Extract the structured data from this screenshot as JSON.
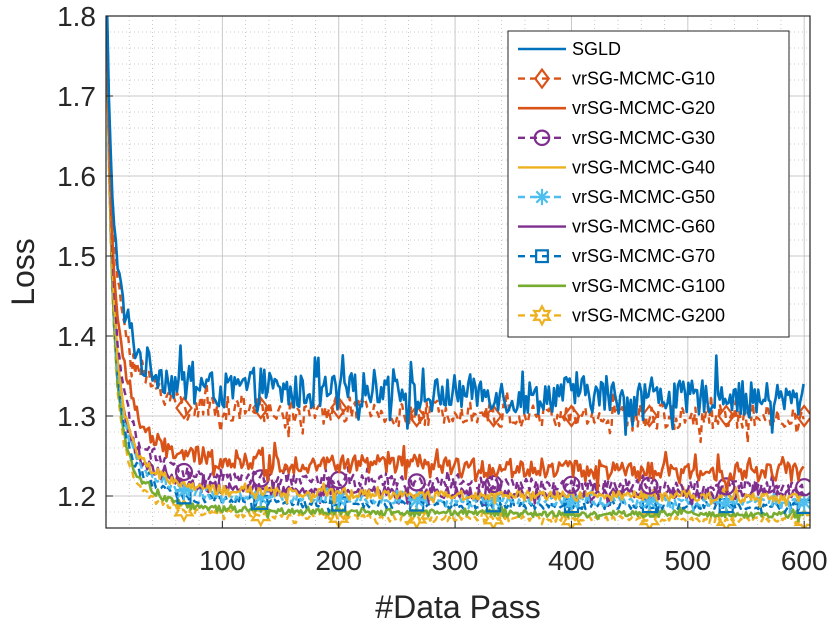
{
  "chart_data": {
    "type": "line",
    "title": "",
    "xlabel": "#Data Pass",
    "ylabel": "Loss",
    "xlim": [
      0,
      605
    ],
    "ylim": [
      1.16,
      1.8
    ],
    "xticks": [
      100,
      200,
      300,
      400,
      500,
      600
    ],
    "yticks": [
      1.2,
      1.3,
      1.4,
      1.5,
      1.6,
      1.7,
      1.8
    ],
    "xtick_labels": [
      "100",
      "200",
      "300",
      "400",
      "500",
      "600"
    ],
    "ytick_labels": [
      "1.2",
      "1.3",
      "1.4",
      "1.5",
      "1.6",
      "1.7",
      "1.8"
    ],
    "grid": true,
    "minor_grid": true,
    "legend_position": "top-right",
    "x": [
      1,
      3,
      6,
      10,
      15,
      20,
      25,
      30,
      40,
      50,
      60,
      67,
      80,
      100,
      133,
      150,
      200,
      250,
      267,
      300,
      333,
      350,
      400,
      450,
      467,
      500,
      533,
      550,
      600
    ],
    "series": [
      {
        "name": "SGLD",
        "color": "#0072BD",
        "dash": "",
        "marker": "none",
        "width": 2.6,
        "values": [
          1.8,
          1.66,
          1.56,
          1.49,
          1.44,
          1.41,
          1.39,
          1.37,
          1.36,
          1.35,
          1.34,
          1.34,
          1.34,
          1.33,
          1.34,
          1.33,
          1.33,
          1.34,
          1.32,
          1.33,
          1.33,
          1.32,
          1.33,
          1.32,
          1.33,
          1.32,
          1.33,
          1.32,
          1.32
        ],
        "noise": 0.022
      },
      {
        "name": "vrSG-MCMC-G10",
        "color": "#D95319",
        "dash": "7,5",
        "marker": "diamond",
        "width": 2.4,
        "values": [
          1.8,
          1.65,
          1.54,
          1.47,
          1.42,
          1.39,
          1.37,
          1.35,
          1.34,
          1.33,
          1.32,
          1.31,
          1.31,
          1.31,
          1.31,
          1.3,
          1.31,
          1.3,
          1.3,
          1.31,
          1.3,
          1.3,
          1.3,
          1.3,
          1.3,
          1.3,
          1.3,
          1.3,
          1.3
        ],
        "noise": 0.016
      },
      {
        "name": "vrSG-MCMC-G20",
        "color": "#D95319",
        "dash": "",
        "marker": "none",
        "width": 2.6,
        "values": [
          1.79,
          1.63,
          1.5,
          1.42,
          1.37,
          1.34,
          1.31,
          1.29,
          1.27,
          1.26,
          1.255,
          1.25,
          1.25,
          1.245,
          1.245,
          1.24,
          1.24,
          1.24,
          1.24,
          1.235,
          1.235,
          1.235,
          1.235,
          1.23,
          1.23,
          1.23,
          1.23,
          1.23,
          1.23
        ],
        "noise": 0.012
      },
      {
        "name": "vrSG-MCMC-G30",
        "color": "#7E2F8E",
        "dash": "7,5",
        "marker": "circle",
        "width": 2.4,
        "values": [
          1.78,
          1.62,
          1.48,
          1.39,
          1.33,
          1.3,
          1.28,
          1.265,
          1.25,
          1.24,
          1.235,
          1.23,
          1.228,
          1.225,
          1.222,
          1.22,
          1.22,
          1.218,
          1.217,
          1.216,
          1.215,
          1.215,
          1.214,
          1.213,
          1.213,
          1.212,
          1.212,
          1.212,
          1.211
        ],
        "noise": 0.008
      },
      {
        "name": "vrSG-MCMC-G40",
        "color": "#EDB120",
        "dash": "",
        "marker": "none",
        "width": 2.4,
        "values": [
          1.77,
          1.6,
          1.46,
          1.37,
          1.31,
          1.28,
          1.26,
          1.245,
          1.232,
          1.224,
          1.218,
          1.214,
          1.21,
          1.207,
          1.205,
          1.204,
          1.203,
          1.202,
          1.202,
          1.201,
          1.201,
          1.2,
          1.2,
          1.2,
          1.2,
          1.2,
          1.199,
          1.199,
          1.199
        ],
        "noise": 0.006
      },
      {
        "name": "vrSG-MCMC-G50",
        "color": "#4DBEEE",
        "dash": "7,5",
        "marker": "asterisk",
        "width": 2.4,
        "values": [
          1.77,
          1.6,
          1.46,
          1.36,
          1.3,
          1.27,
          1.25,
          1.236,
          1.223,
          1.215,
          1.21,
          1.206,
          1.203,
          1.2,
          1.198,
          1.197,
          1.196,
          1.195,
          1.195,
          1.194,
          1.194,
          1.194,
          1.193,
          1.193,
          1.193,
          1.193,
          1.192,
          1.192,
          1.192
        ],
        "noise": 0.006
      },
      {
        "name": "vrSG-MCMC-G60",
        "color": "#7E2F8E",
        "dash": "",
        "marker": "none",
        "width": 2.4,
        "values": [
          1.77,
          1.6,
          1.47,
          1.37,
          1.31,
          1.28,
          1.26,
          1.245,
          1.233,
          1.225,
          1.22,
          1.216,
          1.213,
          1.21,
          1.208,
          1.207,
          1.206,
          1.205,
          1.205,
          1.204,
          1.204,
          1.203,
          1.203,
          1.203,
          1.202,
          1.202,
          1.202,
          1.202,
          1.202
        ],
        "noise": 0.007
      },
      {
        "name": "vrSG-MCMC-G70",
        "color": "#0072BD",
        "dash": "7,5",
        "marker": "square",
        "width": 2.4,
        "values": [
          1.76,
          1.59,
          1.45,
          1.35,
          1.29,
          1.26,
          1.24,
          1.228,
          1.215,
          1.207,
          1.202,
          1.199,
          1.196,
          1.194,
          1.192,
          1.191,
          1.19,
          1.19,
          1.19,
          1.189,
          1.189,
          1.189,
          1.188,
          1.188,
          1.188,
          1.188,
          1.188,
          1.188,
          1.187
        ],
        "noise": 0.005
      },
      {
        "name": "vrSG-MCMC-G100",
        "color": "#77AC30",
        "dash": "",
        "marker": "none",
        "width": 2.6,
        "values": [
          1.76,
          1.58,
          1.44,
          1.34,
          1.28,
          1.25,
          1.23,
          1.218,
          1.205,
          1.197,
          1.192,
          1.189,
          1.186,
          1.184,
          1.182,
          1.181,
          1.18,
          1.18,
          1.179,
          1.179,
          1.179,
          1.178,
          1.178,
          1.178,
          1.178,
          1.178,
          1.177,
          1.177,
          1.177
        ],
        "noise": 0.004
      },
      {
        "name": "vrSG-MCMC-G200",
        "color": "#EDB120",
        "dash": "7,5",
        "marker": "hexagram",
        "width": 2.4,
        "values": [
          1.75,
          1.57,
          1.43,
          1.33,
          1.27,
          1.24,
          1.22,
          1.21,
          1.198,
          1.19,
          1.185,
          1.182,
          1.18,
          1.178,
          1.176,
          1.175,
          1.174,
          1.173,
          1.173,
          1.172,
          1.172,
          1.172,
          1.171,
          1.171,
          1.171,
          1.171,
          1.17,
          1.17,
          1.17
        ],
        "noise": 0.004
      }
    ]
  }
}
